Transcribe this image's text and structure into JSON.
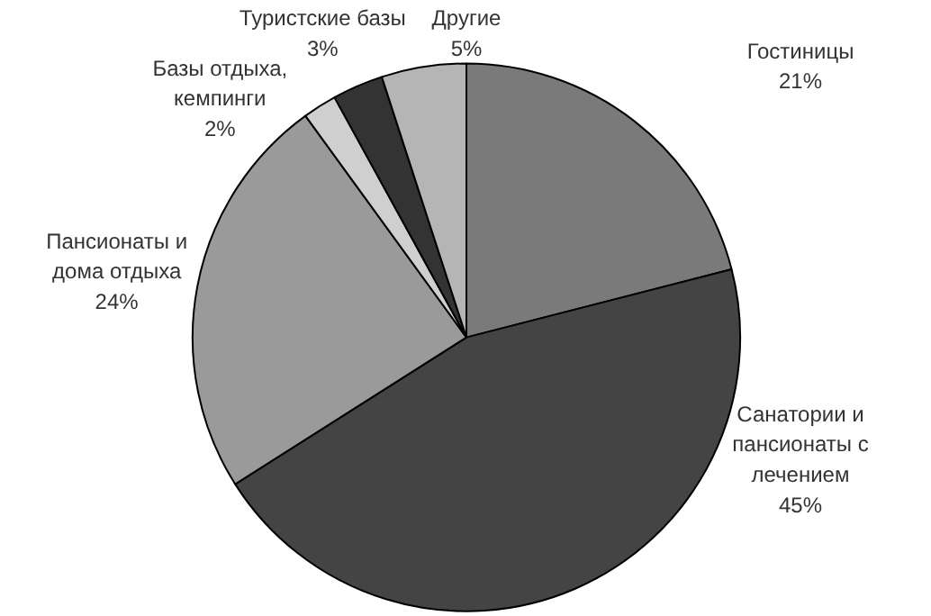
{
  "chart_data": {
    "type": "pie",
    "categories": [
      "Гостиницы",
      "Санатории и пансионаты с лечением",
      "Пансионаты и дома отдыха",
      "Базы отдыха, кемпинги",
      "Туристские базы",
      "Другие"
    ],
    "values": [
      21,
      45,
      24,
      2,
      3,
      5
    ],
    "colors": [
      "#7a7a7a",
      "#444444",
      "#9a9a9a",
      "#cfcfcf",
      "#333333",
      "#b5b5b5"
    ],
    "value_labels": [
      "21%",
      "45%",
      "24%",
      "2%",
      "3%",
      "5%"
    ]
  }
}
